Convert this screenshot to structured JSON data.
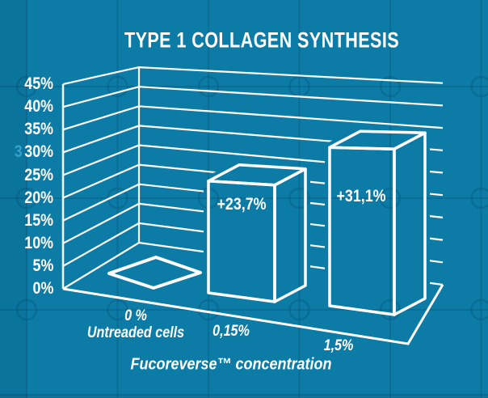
{
  "title": "TYPE 1 COLLAGEN SYNTHESIS",
  "chart_data": {
    "type": "bar",
    "projection": "3d-perspective",
    "title": "TYPE 1 COLLAGEN SYNTHESIS",
    "categories": [
      {
        "line1": "0 %",
        "line2": "Untreaded cells"
      },
      {
        "line1": "0,15%",
        "line2": ""
      },
      {
        "line1": "1,5%",
        "line2": ""
      }
    ],
    "values": [
      0,
      23.7,
      31.1
    ],
    "bar_labels": [
      "",
      "+23,7%",
      "+31,1%"
    ],
    "xlabel": "Fucoreverse™ concentration",
    "ylabel": "",
    "ylim": [
      0,
      45
    ],
    "ytick_step": 5,
    "yticks": [
      "0%",
      "5%",
      "10%",
      "15%",
      "20%",
      "25%",
      "30%",
      "35%",
      "40%",
      "45%"
    ],
    "grid": true,
    "legend": false,
    "style": "white outline bars on teal blueprint background"
  },
  "artifacts": {
    "ghost_digit": "3"
  },
  "colors": {
    "background": "#0C7CA6",
    "pattern_line": "#085E84",
    "foreground": "#FFFFFF",
    "ghost_digit": "#36A0CB"
  }
}
